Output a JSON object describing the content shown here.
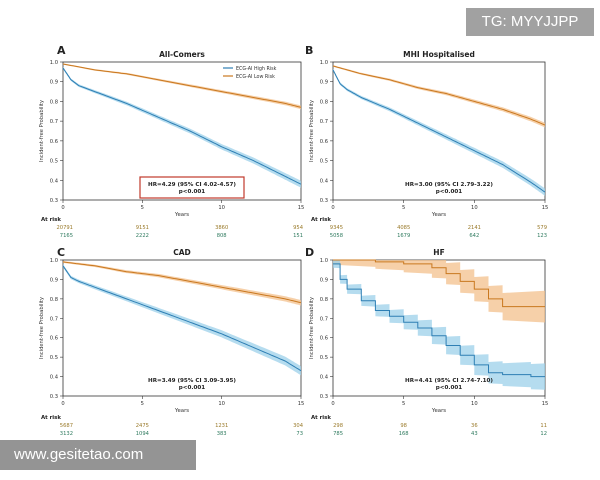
{
  "watermarks": {
    "top_right": "TG: MYYJJPP",
    "bottom_left": "www.gesitetao.com"
  },
  "colors": {
    "high_risk": "#2e7fb4",
    "high_risk_band": "#9cd0ea",
    "low_risk": "#c9781f",
    "low_risk_band": "#f3c08c",
    "risk_high_text": "#2e7a5e",
    "risk_low_text": "#9a7a2a",
    "highlight_box": "#c0392b"
  },
  "chart_data": [
    {
      "type": "line",
      "panel": "A",
      "title": "All-Comers",
      "xlabel": "Years",
      "ylabel": "Incident-free Probability",
      "xlim": [
        0,
        15
      ],
      "ylim": [
        0.3,
        1.0
      ],
      "xticks": [
        0,
        5,
        10,
        15
      ],
      "yticks": [
        0.3,
        0.4,
        0.5,
        0.6,
        0.7,
        0.8,
        0.9,
        1.0
      ],
      "legend": [
        "ECG-AI High Risk",
        "ECG-AI Low Risk"
      ],
      "legend_position": "top-right",
      "series": [
        {
          "name": "ECG-AI Low Risk",
          "x": [
            0,
            2,
            4,
            6,
            8,
            10,
            12,
            14,
            15
          ],
          "y": [
            0.99,
            0.96,
            0.94,
            0.91,
            0.88,
            0.85,
            0.82,
            0.79,
            0.77
          ],
          "band": 0.008
        },
        {
          "name": "ECG-AI High Risk",
          "x": [
            0,
            0.5,
            1,
            2,
            3,
            4,
            6,
            8,
            10,
            12,
            14,
            15
          ],
          "y": [
            0.97,
            0.91,
            0.88,
            0.85,
            0.82,
            0.79,
            0.72,
            0.65,
            0.57,
            0.5,
            0.42,
            0.38
          ],
          "band": 0.015
        }
      ],
      "annotation": [
        "HR=4.29 (95% CI 4.02-4.57)",
        "p<0.001"
      ],
      "annotation_boxed": true,
      "at_risk_label": "At risk",
      "at_risk_low": [
        "20791",
        "9151",
        "3860",
        "954"
      ],
      "at_risk_high": [
        "7165",
        "2222",
        "808",
        "151"
      ]
    },
    {
      "type": "line",
      "panel": "B",
      "title": "MHI Hospitalised",
      "xlabel": "Years",
      "ylabel": "Incident-free Probability",
      "xlim": [
        0,
        15
      ],
      "ylim": [
        0.3,
        1.0
      ],
      "xticks": [
        0,
        5,
        10,
        15
      ],
      "yticks": [
        0.3,
        0.4,
        0.5,
        0.6,
        0.7,
        0.8,
        0.9,
        1.0
      ],
      "series": [
        {
          "name": "ECG-AI Low Risk",
          "x": [
            0,
            2,
            4,
            6,
            8,
            10,
            12,
            14,
            15
          ],
          "y": [
            0.98,
            0.94,
            0.91,
            0.87,
            0.84,
            0.8,
            0.76,
            0.71,
            0.68
          ],
          "band": 0.01
        },
        {
          "name": "ECG-AI High Risk",
          "x": [
            0,
            0.5,
            1,
            2,
            3,
            4,
            6,
            8,
            10,
            12,
            14,
            15
          ],
          "y": [
            0.96,
            0.89,
            0.86,
            0.82,
            0.79,
            0.76,
            0.69,
            0.62,
            0.55,
            0.48,
            0.39,
            0.34
          ],
          "band": 0.016
        }
      ],
      "annotation": [
        "HR=3.00 (95% CI 2.79-3.22)",
        "p<0.001"
      ],
      "annotation_boxed": false,
      "at_risk_label": "At risk",
      "at_risk_low": [
        "9345",
        "4085",
        "2141",
        "579"
      ],
      "at_risk_high": [
        "5058",
        "1679",
        "642",
        "123"
      ]
    },
    {
      "type": "line",
      "panel": "C",
      "title": "CAD",
      "xlabel": "Years",
      "ylabel": "Incident-free Probability",
      "xlim": [
        0,
        15
      ],
      "ylim": [
        0.3,
        1.0
      ],
      "xticks": [
        0,
        5,
        10,
        15
      ],
      "yticks": [
        0.3,
        0.4,
        0.5,
        0.6,
        0.7,
        0.8,
        0.9,
        1.0
      ],
      "series": [
        {
          "name": "ECG-AI Low Risk",
          "x": [
            0,
            2,
            4,
            6,
            8,
            10,
            12,
            14,
            15
          ],
          "y": [
            0.99,
            0.97,
            0.94,
            0.92,
            0.89,
            0.86,
            0.83,
            0.8,
            0.78
          ],
          "band": 0.012
        },
        {
          "name": "ECG-AI High Risk",
          "x": [
            0,
            0.5,
            1,
            2,
            3,
            4,
            6,
            8,
            10,
            12,
            14,
            15
          ],
          "y": [
            0.97,
            0.91,
            0.89,
            0.86,
            0.83,
            0.8,
            0.74,
            0.68,
            0.62,
            0.55,
            0.48,
            0.43
          ],
          "band": 0.02
        }
      ],
      "annotation": [
        "HR=3.49 (95% CI 3.09-3.95)",
        "p<0.001"
      ],
      "annotation_boxed": false,
      "at_risk_label": "At risk",
      "at_risk_low": [
        "5687",
        "2475",
        "1231",
        "304"
      ],
      "at_risk_high": [
        "3132",
        "1094",
        "383",
        "73"
      ]
    },
    {
      "type": "line",
      "panel": "D",
      "title": "HF",
      "xlabel": "Years",
      "ylabel": "Incident-free Probability",
      "xlim": [
        0,
        15
      ],
      "ylim": [
        0.3,
        1.0
      ],
      "xticks": [
        0,
        5,
        10,
        15
      ],
      "yticks": [
        0.3,
        0.4,
        0.5,
        0.6,
        0.7,
        0.8,
        0.9,
        1.0
      ],
      "series": [
        {
          "name": "ECG-AI Low Risk",
          "step": true,
          "x": [
            0,
            3,
            5,
            7,
            8,
            9,
            10,
            11,
            12,
            15
          ],
          "y": [
            1.0,
            0.99,
            0.98,
            0.96,
            0.93,
            0.89,
            0.85,
            0.8,
            0.76,
            0.76
          ],
          "band": 0.06
        },
        {
          "name": "ECG-AI High Risk",
          "step": true,
          "x": [
            0,
            0.5,
            1,
            2,
            3,
            4,
            5,
            6,
            7,
            8,
            9,
            10,
            11,
            12,
            14,
            15
          ],
          "y": [
            0.98,
            0.9,
            0.85,
            0.79,
            0.74,
            0.71,
            0.68,
            0.65,
            0.61,
            0.56,
            0.51,
            0.46,
            0.42,
            0.41,
            0.4,
            0.4
          ],
          "band": 0.05
        }
      ],
      "annotation": [
        "HR=4.41 (95% CI 2.74-7.10)",
        "p<0.001"
      ],
      "annotation_boxed": false,
      "at_risk_label": "At risk",
      "at_risk_low": [
        "298",
        "98",
        "36",
        "11"
      ],
      "at_risk_high": [
        "785",
        "168",
        "43",
        "12"
      ]
    }
  ]
}
